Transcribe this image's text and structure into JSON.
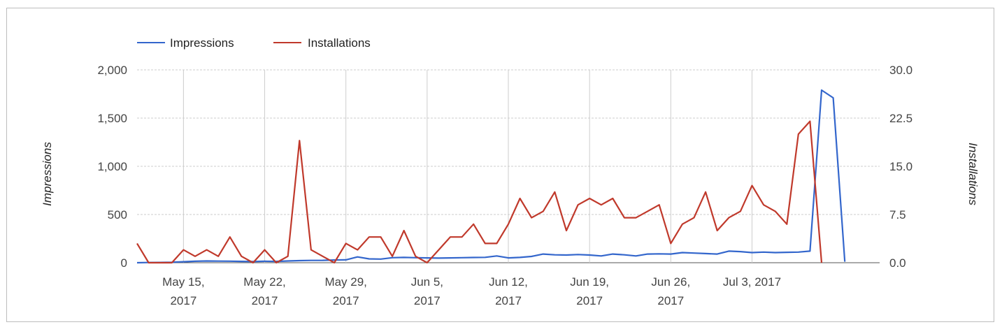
{
  "chart_data": {
    "type": "line",
    "title": "",
    "legend_position": "top-left",
    "grid": true,
    "x_ticks": [
      {
        "line1": "May 15,",
        "line2": "2017",
        "date": "2017-05-15"
      },
      {
        "line1": "May 22,",
        "line2": "2017",
        "date": "2017-05-22"
      },
      {
        "line1": "May 29,",
        "line2": "2017",
        "date": "2017-05-29"
      },
      {
        "line1": "Jun 5,",
        "line2": "2017",
        "date": "2017-06-05"
      },
      {
        "line1": "Jun 12,",
        "line2": "2017",
        "date": "2017-06-12"
      },
      {
        "line1": "Jun 19,",
        "line2": "2017",
        "date": "2017-06-19"
      },
      {
        "line1": "Jun 26,",
        "line2": "2017",
        "date": "2017-06-26"
      },
      {
        "line1": "Jul 3, 2017",
        "line2": "",
        "date": "2017-07-03"
      }
    ],
    "x_range": [
      "2017-05-11",
      "2017-07-14"
    ],
    "y_left": {
      "label": "Impressions",
      "min": 0,
      "max": 2000,
      "ticks": [
        "0",
        "500",
        "1,000",
        "1,500",
        "2,000"
      ]
    },
    "y_right": {
      "label": "Installations",
      "min": 0,
      "max": 30,
      "ticks": [
        "0.0",
        "7.5",
        "15.0",
        "22.5",
        "30.0"
      ]
    },
    "series": [
      {
        "name": "Impressions",
        "axis": "left",
        "color": "#3366cc",
        "points": [
          [
            "2017-05-11",
            0
          ],
          [
            "2017-05-12",
            2
          ],
          [
            "2017-05-13",
            3
          ],
          [
            "2017-05-14",
            5
          ],
          [
            "2017-05-15",
            10
          ],
          [
            "2017-05-16",
            15
          ],
          [
            "2017-05-17",
            18
          ],
          [
            "2017-05-18",
            17
          ],
          [
            "2017-05-19",
            16
          ],
          [
            "2017-05-20",
            14
          ],
          [
            "2017-05-21",
            12
          ],
          [
            "2017-05-22",
            15
          ],
          [
            "2017-05-23",
            14
          ],
          [
            "2017-05-24",
            18
          ],
          [
            "2017-05-25",
            22
          ],
          [
            "2017-05-26",
            24
          ],
          [
            "2017-05-27",
            25
          ],
          [
            "2017-05-28",
            28
          ],
          [
            "2017-05-29",
            30
          ],
          [
            "2017-05-30",
            60
          ],
          [
            "2017-05-31",
            40
          ],
          [
            "2017-06-01",
            38
          ],
          [
            "2017-06-02",
            52
          ],
          [
            "2017-06-03",
            55
          ],
          [
            "2017-06-04",
            52
          ],
          [
            "2017-06-05",
            50
          ],
          [
            "2017-06-06",
            48
          ],
          [
            "2017-06-07",
            50
          ],
          [
            "2017-06-08",
            52
          ],
          [
            "2017-06-09",
            54
          ],
          [
            "2017-06-10",
            56
          ],
          [
            "2017-06-11",
            70
          ],
          [
            "2017-06-12",
            50
          ],
          [
            "2017-06-13",
            55
          ],
          [
            "2017-06-14",
            65
          ],
          [
            "2017-06-15",
            90
          ],
          [
            "2017-06-16",
            82
          ],
          [
            "2017-06-17",
            80
          ],
          [
            "2017-06-18",
            85
          ],
          [
            "2017-06-19",
            80
          ],
          [
            "2017-06-20",
            70
          ],
          [
            "2017-06-21",
            90
          ],
          [
            "2017-06-22",
            82
          ],
          [
            "2017-06-23",
            70
          ],
          [
            "2017-06-24",
            90
          ],
          [
            "2017-06-25",
            92
          ],
          [
            "2017-06-26",
            90
          ],
          [
            "2017-06-27",
            105
          ],
          [
            "2017-06-28",
            100
          ],
          [
            "2017-06-29",
            95
          ],
          [
            "2017-06-30",
            90
          ],
          [
            "2017-07-01",
            120
          ],
          [
            "2017-07-02",
            115
          ],
          [
            "2017-07-03",
            105
          ],
          [
            "2017-07-04",
            110
          ],
          [
            "2017-07-05",
            105
          ],
          [
            "2017-07-06",
            108
          ],
          [
            "2017-07-07",
            110
          ],
          [
            "2017-07-08",
            120
          ],
          [
            "2017-07-09",
            1790
          ],
          [
            "2017-07-10",
            1710
          ],
          [
            "2017-07-11",
            10
          ]
        ]
      },
      {
        "name": "Installations",
        "axis": "right",
        "color": "#c0392b",
        "points": [
          [
            "2017-05-11",
            3
          ],
          [
            "2017-05-12",
            0
          ],
          [
            "2017-05-13",
            0
          ],
          [
            "2017-05-14",
            0
          ],
          [
            "2017-05-15",
            2
          ],
          [
            "2017-05-16",
            1
          ],
          [
            "2017-05-17",
            2
          ],
          [
            "2017-05-18",
            1
          ],
          [
            "2017-05-19",
            4
          ],
          [
            "2017-05-20",
            1
          ],
          [
            "2017-05-21",
            0
          ],
          [
            "2017-05-22",
            2
          ],
          [
            "2017-05-23",
            0
          ],
          [
            "2017-05-24",
            1
          ],
          [
            "2017-05-25",
            19
          ],
          [
            "2017-05-26",
            2
          ],
          [
            "2017-05-27",
            1
          ],
          [
            "2017-05-28",
            0
          ],
          [
            "2017-05-29",
            3
          ],
          [
            "2017-05-30",
            2
          ],
          [
            "2017-05-31",
            4
          ],
          [
            "2017-06-01",
            4
          ],
          [
            "2017-06-02",
            1
          ],
          [
            "2017-06-03",
            5
          ],
          [
            "2017-06-04",
            1
          ],
          [
            "2017-06-05",
            0
          ],
          [
            "2017-06-06",
            2
          ],
          [
            "2017-06-07",
            4
          ],
          [
            "2017-06-08",
            4
          ],
          [
            "2017-06-09",
            6
          ],
          [
            "2017-06-10",
            3
          ],
          [
            "2017-06-11",
            3
          ],
          [
            "2017-06-12",
            6
          ],
          [
            "2017-06-13",
            10
          ],
          [
            "2017-06-14",
            7
          ],
          [
            "2017-06-15",
            8
          ],
          [
            "2017-06-16",
            11
          ],
          [
            "2017-06-17",
            5
          ],
          [
            "2017-06-18",
            9
          ],
          [
            "2017-06-19",
            10
          ],
          [
            "2017-06-20",
            9
          ],
          [
            "2017-06-21",
            10
          ],
          [
            "2017-06-22",
            7
          ],
          [
            "2017-06-23",
            7
          ],
          [
            "2017-06-24",
            8
          ],
          [
            "2017-06-25",
            9
          ],
          [
            "2017-06-26",
            3
          ],
          [
            "2017-06-27",
            6
          ],
          [
            "2017-06-28",
            7
          ],
          [
            "2017-06-29",
            11
          ],
          [
            "2017-06-30",
            5
          ],
          [
            "2017-07-01",
            7
          ],
          [
            "2017-07-02",
            8
          ],
          [
            "2017-07-03",
            12
          ],
          [
            "2017-07-04",
            9
          ],
          [
            "2017-07-05",
            8
          ],
          [
            "2017-07-06",
            6
          ],
          [
            "2017-07-07",
            20
          ],
          [
            "2017-07-08",
            22
          ],
          [
            "2017-07-09",
            0
          ]
        ]
      }
    ]
  }
}
